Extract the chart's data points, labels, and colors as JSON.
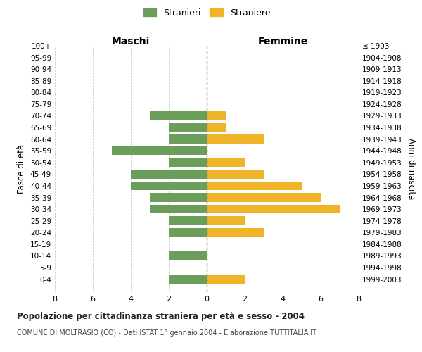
{
  "age_groups": [
    "100+",
    "95-99",
    "90-94",
    "85-89",
    "80-84",
    "75-79",
    "70-74",
    "65-69",
    "60-64",
    "55-59",
    "50-54",
    "45-49",
    "40-44",
    "35-39",
    "30-34",
    "25-29",
    "20-24",
    "15-19",
    "10-14",
    "5-9",
    "0-4"
  ],
  "birth_years": [
    "≤ 1903",
    "1904-1908",
    "1909-1913",
    "1914-1918",
    "1919-1923",
    "1924-1928",
    "1929-1933",
    "1934-1938",
    "1939-1943",
    "1944-1948",
    "1949-1953",
    "1954-1958",
    "1959-1963",
    "1964-1968",
    "1969-1973",
    "1974-1978",
    "1979-1983",
    "1984-1988",
    "1989-1993",
    "1994-1998",
    "1999-2003"
  ],
  "maschi": [
    0,
    0,
    0,
    0,
    0,
    0,
    3,
    2,
    2,
    5,
    2,
    4,
    4,
    3,
    3,
    2,
    2,
    0,
    2,
    0,
    2
  ],
  "femmine": [
    0,
    0,
    0,
    0,
    0,
    0,
    1,
    1,
    3,
    0,
    2,
    3,
    5,
    6,
    7,
    2,
    3,
    0,
    0,
    0,
    2
  ],
  "color_maschi": "#6a9e5a",
  "color_femmine": "#f0b429",
  "title_main": "Popolazione per cittadinanza straniera per età e sesso - 2004",
  "title_sub": "COMUNE DI MOLTRASIO (CO) - Dati ISTAT 1° gennaio 2004 - Elaborazione TUTTITALIA.IT",
  "label_maschi": "Maschi",
  "label_femmine": "Femmine",
  "ylabel_left": "Fasce di età",
  "ylabel_right": "Anni di nascita",
  "legend_maschi": "Stranieri",
  "legend_femmine": "Straniere",
  "xlim": 8,
  "bg_color": "#ffffff",
  "grid_color": "#cccccc",
  "bar_height": 0.75
}
